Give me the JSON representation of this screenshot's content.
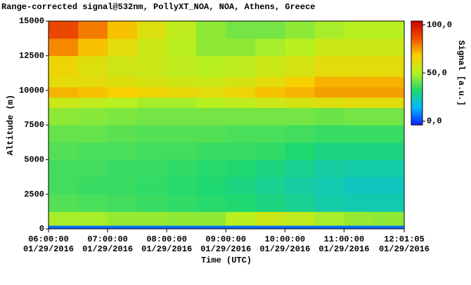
{
  "chart_data": {
    "type": "heatmap",
    "title": "Range-corrected signal@532nm, PollyXT_NOA, NOA, Athens, Greece",
    "x_label": "Time (UTC)",
    "y_label": "Altitude (m)",
    "colorbar_label": "Signal [a.u.]",
    "xlim": [
      "2016-01-29T06:00:00",
      "2016-01-29T12:01:05"
    ],
    "xticks": [
      {
        "value": "2016-01-29T06:00:00",
        "label": [
          "06:00:00",
          "01/29/2016"
        ]
      },
      {
        "value": "2016-01-29T07:00:00",
        "label": [
          "07:00:00",
          "01/29/2016"
        ]
      },
      {
        "value": "2016-01-29T08:00:00",
        "label": [
          "08:00:00",
          "01/29/2016"
        ]
      },
      {
        "value": "2016-01-29T09:00:00",
        "label": [
          "09:00:00",
          "01/29/2016"
        ]
      },
      {
        "value": "2016-01-29T10:00:00",
        "label": [
          "10:00:00",
          "01/29/2016"
        ]
      },
      {
        "value": "2016-01-29T11:00:00",
        "label": [
          "11:00:00",
          "01/29/2016"
        ]
      },
      {
        "value": "2016-01-29T12:01:05",
        "label": [
          "12:01:05",
          "01/29/2016"
        ]
      }
    ],
    "ylim": [
      0,
      15000
    ],
    "yticks": [
      0,
      2500,
      5000,
      7500,
      10000,
      12500,
      15000
    ],
    "clim": [
      -4,
      104
    ],
    "cticks": [
      {
        "value": 100,
        "label": "100,0"
      },
      {
        "value": 50,
        "label": "50,0"
      },
      {
        "value": 0,
        "label": "0,0"
      }
    ],
    "colormap": [
      "#1020ff",
      "#00b8ff",
      "#20d870",
      "#b8f020",
      "#f8d000",
      "#f05000",
      "#d00000"
    ],
    "xbins": [
      "2016-01-29T06:00:00",
      "2016-01-29T06:30:00",
      "2016-01-29T07:00:00",
      "2016-01-29T07:30:00",
      "2016-01-29T08:00:00",
      "2016-01-29T08:30:00",
      "2016-01-29T09:00:00",
      "2016-01-29T09:30:00",
      "2016-01-29T10:00:00",
      "2016-01-29T10:30:00",
      "2016-01-29T11:00:00",
      "2016-01-29T11:30:00",
      "2016-01-29T12:01:05"
    ],
    "ybins": [
      0,
      250,
      1250,
      2500,
      3750,
      5000,
      6250,
      7500,
      8750,
      9500,
      10250,
      11000,
      12500,
      13750,
      15000
    ],
    "values": [
      [
        5,
        5,
        5,
        5,
        5,
        5,
        5,
        5,
        5,
        5,
        5,
        5
      ],
      [
        48,
        48,
        46,
        46,
        45,
        45,
        50,
        55,
        52,
        48,
        46,
        45
      ],
      [
        38,
        37,
        36,
        35,
        34,
        33,
        32,
        30,
        28,
        25,
        24,
        24
      ],
      [
        36,
        35,
        35,
        34,
        33,
        32,
        30,
        28,
        26,
        24,
        22,
        22
      ],
      [
        36,
        36,
        35,
        35,
        34,
        33,
        32,
        30,
        28,
        26,
        25,
        25
      ],
      [
        38,
        37,
        37,
        36,
        36,
        35,
        35,
        34,
        32,
        30,
        30,
        30
      ],
      [
        40,
        40,
        39,
        38,
        38,
        38,
        37,
        37,
        36,
        35,
        35,
        35
      ],
      [
        45,
        44,
        43,
        42,
        42,
        42,
        42,
        42,
        42,
        41,
        42,
        42
      ],
      [
        55,
        52,
        50,
        48,
        48,
        50,
        52,
        55,
        58,
        60,
        62,
        62
      ],
      [
        72,
        70,
        68,
        66,
        64,
        62,
        65,
        70,
        72,
        75,
        75,
        75
      ],
      [
        62,
        62,
        60,
        58,
        56,
        55,
        58,
        62,
        68,
        72,
        72,
        72
      ],
      [
        65,
        60,
        56,
        55,
        52,
        50,
        52,
        55,
        58,
        62,
        62,
        62
      ],
      [
        78,
        70,
        62,
        55,
        50,
        45,
        45,
        48,
        50,
        55,
        55,
        55
      ],
      [
        88,
        80,
        70,
        60,
        52,
        45,
        42,
        42,
        45,
        48,
        50,
        50
      ]
    ]
  }
}
